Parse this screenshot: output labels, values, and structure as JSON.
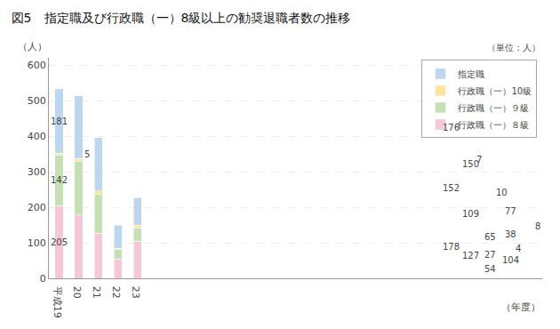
{
  "chart_data": {
    "type": "bar",
    "stacked": true,
    "title": "図5　指定職及び行政職（一）8級以上の勧奨退職者数の推移",
    "xlabel": "（年度）",
    "ylabel": "（人）",
    "annotations": [
      "（単位：人）"
    ],
    "categories": [
      "平成19",
      "20",
      "21",
      "22",
      "23"
    ],
    "series": [
      {
        "name": "行政職（一）８級",
        "color": "#f5c8d8",
        "values": [
          205,
          178,
          127,
          54,
          104
        ]
      },
      {
        "name": "行政職（一）９級",
        "color": "#c5e0b4",
        "values": [
          142,
          152,
          109,
          27,
          38
        ]
      },
      {
        "name": "行政職（一）10級",
        "color": "#fce4a0",
        "values": [
          5,
          7,
          10,
          4,
          8
        ]
      },
      {
        "name": "指定職",
        "color": "#bdd7ee",
        "values": [
          181,
          176,
          150,
          65,
          77
        ]
      }
    ],
    "ylim": [
      0,
      620
    ],
    "yticks": [
      0,
      100,
      200,
      300,
      400,
      500,
      600
    ],
    "grid": true,
    "legend": "upper right",
    "data_labels": true
  }
}
